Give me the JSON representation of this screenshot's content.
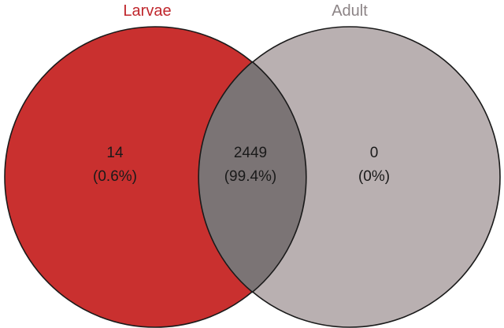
{
  "sets": [
    {
      "label": "Larvae",
      "color": "#c0272d",
      "fill": "#c9302f"
    },
    {
      "label": "Adult",
      "color": "#8c8486",
      "fill": "#b9b0b1"
    }
  ],
  "intersection_fill": "#7b7475",
  "regions": {
    "larvae_only": {
      "count": "14",
      "percent": "(0.6%)"
    },
    "both": {
      "count": "2449",
      "percent": "(99.4%)"
    },
    "adult_only": {
      "count": "0",
      "percent": "(0%)"
    }
  }
}
